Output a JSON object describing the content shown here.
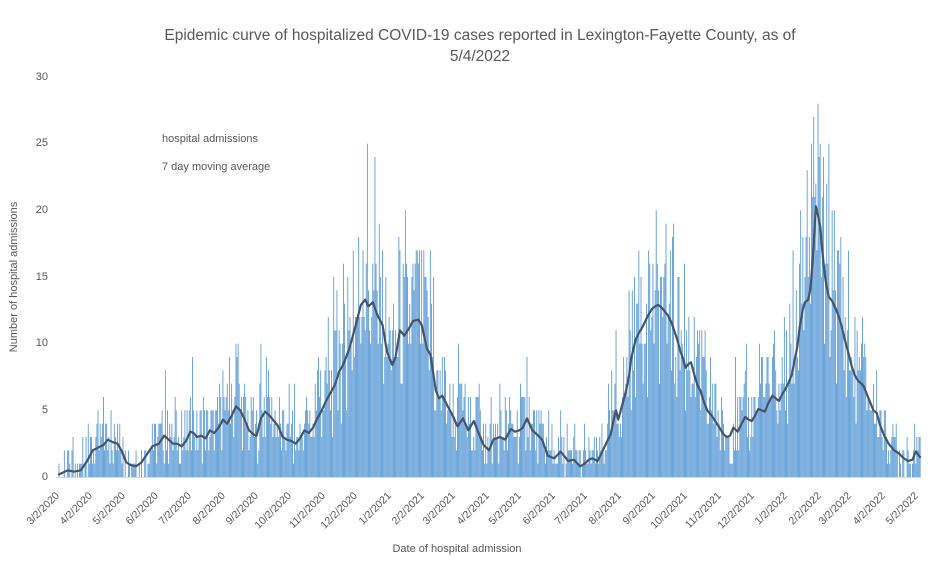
{
  "title": {
    "line1": "Epidemic curve of hospitalized COVID-19 cases reported in Lexington-Fayette County, as of",
    "line2": "5/4/2022"
  },
  "legend": {
    "items": [
      {
        "label": "hospital admissions",
        "swatch": "bar-swatch"
      },
      {
        "label": "7 day moving average",
        "swatch": "line-swatch"
      }
    ]
  },
  "chart_data": {
    "type": "combo",
    "title": "Epidemic curve of hospitalized COVID-19 cases reported in Lexington-Fayette County, as of 5/4/2022",
    "xlabel": "Date of hospital admission",
    "ylabel": "Number of hospital admissions",
    "ylim": [
      0,
      30
    ],
    "y_ticks": [
      0,
      5,
      10,
      15,
      20,
      25,
      30
    ],
    "grid": false,
    "legend_position": "top-left-inside",
    "start_date": "3/2/2020",
    "end_date": "5/4/2022",
    "n_days": 794,
    "x_ticks": [
      {
        "label": "3/2/2020",
        "day": 0
      },
      {
        "label": "4/2/2020",
        "day": 31
      },
      {
        "label": "5/2/2020",
        "day": 61
      },
      {
        "label": "6/2/2020",
        "day": 92
      },
      {
        "label": "7/2/2020",
        "day": 122
      },
      {
        "label": "8/2/2020",
        "day": 153
      },
      {
        "label": "9/2/2020",
        "day": 184
      },
      {
        "label": "10/2/2020",
        "day": 214
      },
      {
        "label": "11/2/2020",
        "day": 245
      },
      {
        "label": "12/2/2020",
        "day": 275
      },
      {
        "label": "1/2/2021",
        "day": 306
      },
      {
        "label": "2/2/2021",
        "day": 337
      },
      {
        "label": "3/2/2021",
        "day": 365
      },
      {
        "label": "4/2/2021",
        "day": 396
      },
      {
        "label": "5/2/2021",
        "day": 426
      },
      {
        "label": "6/2/2021",
        "day": 457
      },
      {
        "label": "7/2/2021",
        "day": 487
      },
      {
        "label": "8/2/2021",
        "day": 518
      },
      {
        "label": "9/2/2021",
        "day": 549
      },
      {
        "label": "10/2/2021",
        "day": 579
      },
      {
        "label": "11/2/2021",
        "day": 610
      },
      {
        "label": "12/2/2021",
        "day": 640
      },
      {
        "label": "1/2/2022",
        "day": 671
      },
      {
        "label": "2/2/2022",
        "day": 702
      },
      {
        "label": "3/2/2022",
        "day": 730
      },
      {
        "label": "4/2/2022",
        "day": 761
      },
      {
        "label": "5/2/2022",
        "day": 791
      }
    ],
    "series": [
      {
        "name": "hospital admissions",
        "type": "bar"
      },
      {
        "name": "7 day moving average",
        "type": "line"
      }
    ],
    "ma_keypoints": [
      [
        0,
        0.2
      ],
      [
        8,
        0.5
      ],
      [
        14,
        0.4
      ],
      [
        20,
        0.5
      ],
      [
        26,
        1.2
      ],
      [
        31,
        2.0
      ],
      [
        36,
        2.2
      ],
      [
        41,
        2.4
      ],
      [
        45,
        2.8
      ],
      [
        50,
        2.6
      ],
      [
        54,
        2.5
      ],
      [
        58,
        1.9
      ],
      [
        62,
        1.1
      ],
      [
        66,
        0.9
      ],
      [
        71,
        0.8
      ],
      [
        76,
        1.1
      ],
      [
        81,
        1.7
      ],
      [
        86,
        2.3
      ],
      [
        92,
        2.5
      ],
      [
        97,
        3.1
      ],
      [
        101,
        2.8
      ],
      [
        105,
        2.5
      ],
      [
        109,
        2.5
      ],
      [
        113,
        2.3
      ],
      [
        117,
        2.7
      ],
      [
        121,
        3.4
      ],
      [
        124,
        3.3
      ],
      [
        127,
        3.0
      ],
      [
        131,
        3.1
      ],
      [
        135,
        2.9
      ],
      [
        139,
        3.5
      ],
      [
        143,
        3.3
      ],
      [
        147,
        3.7
      ],
      [
        151,
        4.3
      ],
      [
        155,
        4.0
      ],
      [
        159,
        4.6
      ],
      [
        163,
        5.3
      ],
      [
        167,
        5.0
      ],
      [
        171,
        4.3
      ],
      [
        175,
        3.5
      ],
      [
        179,
        3.2
      ],
      [
        182,
        3.1
      ],
      [
        186,
        4.4
      ],
      [
        190,
        4.9
      ],
      [
        194,
        4.6
      ],
      [
        198,
        4.2
      ],
      [
        202,
        3.8
      ],
      [
        206,
        3.0
      ],
      [
        210,
        2.8
      ],
      [
        214,
        2.7
      ],
      [
        218,
        2.5
      ],
      [
        222,
        2.9
      ],
      [
        226,
        3.5
      ],
      [
        230,
        3.3
      ],
      [
        234,
        3.7
      ],
      [
        238,
        4.4
      ],
      [
        242,
        5.0
      ],
      [
        246,
        5.7
      ],
      [
        250,
        6.3
      ],
      [
        254,
        6.9
      ],
      [
        258,
        7.9
      ],
      [
        261,
        8.3
      ],
      [
        264,
        8.9
      ],
      [
        268,
        9.8
      ],
      [
        273,
        11.3
      ],
      [
        278,
        12.9
      ],
      [
        282,
        13.3
      ],
      [
        285,
        12.8
      ],
      [
        289,
        13.1
      ],
      [
        293,
        12.2
      ],
      [
        298,
        11.4
      ],
      [
        302,
        9.4
      ],
      [
        307,
        8.4
      ],
      [
        310,
        9.0
      ],
      [
        314,
        11.0
      ],
      [
        318,
        10.6
      ],
      [
        322,
        11.1
      ],
      [
        326,
        11.7
      ],
      [
        331,
        11.8
      ],
      [
        334,
        11.4
      ],
      [
        339,
        9.6
      ],
      [
        342,
        9.2
      ],
      [
        347,
        6.5
      ],
      [
        350,
        5.9
      ],
      [
        353,
        6.1
      ],
      [
        358,
        5.3
      ],
      [
        362,
        4.7
      ],
      [
        367,
        3.8
      ],
      [
        372,
        4.4
      ],
      [
        377,
        3.5
      ],
      [
        382,
        4.2
      ],
      [
        386,
        3.4
      ],
      [
        391,
        2.4
      ],
      [
        396,
        2.0
      ],
      [
        400,
        2.8
      ],
      [
        406,
        3.0
      ],
      [
        411,
        2.8
      ],
      [
        416,
        3.6
      ],
      [
        420,
        3.4
      ],
      [
        424,
        3.5
      ],
      [
        427,
        3.7
      ],
      [
        431,
        4.4
      ],
      [
        436,
        3.5
      ],
      [
        440,
        3.2
      ],
      [
        445,
        2.8
      ],
      [
        450,
        1.6
      ],
      [
        456,
        1.4
      ],
      [
        462,
        1.9
      ],
      [
        466,
        1.5
      ],
      [
        469,
        1.2
      ],
      [
        474,
        1.3
      ],
      [
        480,
        0.8
      ],
      [
        484,
        1.0
      ],
      [
        488,
        1.3
      ],
      [
        491,
        1.4
      ],
      [
        496,
        1.2
      ],
      [
        499,
        1.7
      ],
      [
        502,
        2.2
      ],
      [
        505,
        2.7
      ],
      [
        508,
        3.2
      ],
      [
        511,
        4.4
      ],
      [
        513,
        5.0
      ],
      [
        515,
        4.3
      ],
      [
        518,
        5.2
      ],
      [
        522,
        6.4
      ],
      [
        525,
        7.6
      ],
      [
        527,
        8.9
      ],
      [
        531,
        10.3
      ],
      [
        534,
        10.8
      ],
      [
        537,
        11.2
      ],
      [
        540,
        11.7
      ],
      [
        543,
        12.2
      ],
      [
        546,
        12.6
      ],
      [
        549,
        12.8
      ],
      [
        552,
        12.9
      ],
      [
        555,
        12.7
      ],
      [
        558,
        12.4
      ],
      [
        561,
        12.1
      ],
      [
        564,
        11.6
      ],
      [
        566,
        11.1
      ],
      [
        569,
        10.4
      ],
      [
        572,
        9.5
      ],
      [
        575,
        8.8
      ],
      [
        577,
        8.2
      ],
      [
        580,
        8.5
      ],
      [
        582,
        8.6
      ],
      [
        584,
        8.0
      ],
      [
        586,
        7.4
      ],
      [
        588,
        6.9
      ],
      [
        591,
        6.4
      ],
      [
        594,
        5.6
      ],
      [
        597,
        5.0
      ],
      [
        601,
        4.6
      ],
      [
        605,
        4.1
      ],
      [
        609,
        3.6
      ],
      [
        612,
        3.2
      ],
      [
        615,
        3.0
      ],
      [
        618,
        3.1
      ],
      [
        621,
        3.7
      ],
      [
        625,
        3.4
      ],
      [
        628,
        3.9
      ],
      [
        632,
        4.5
      ],
      [
        635,
        4.3
      ],
      [
        638,
        4.2
      ],
      [
        641,
        4.6
      ],
      [
        644,
        5.1
      ],
      [
        647,
        5.0
      ],
      [
        650,
        4.9
      ],
      [
        653,
        5.5
      ],
      [
        657,
        6.1
      ],
      [
        660,
        5.9
      ],
      [
        663,
        5.7
      ],
      [
        666,
        6.2
      ],
      [
        669,
        6.6
      ],
      [
        672,
        7.1
      ],
      [
        675,
        7.7
      ],
      [
        677,
        8.6
      ],
      [
        680,
        9.8
      ],
      [
        682,
        11.2
      ],
      [
        685,
        12.6
      ],
      [
        687,
        13.1
      ],
      [
        690,
        13.3
      ],
      [
        692,
        14.1
      ],
      [
        694,
        16.2
      ],
      [
        697,
        20.3
      ],
      [
        699,
        19.6
      ],
      [
        701,
        18.8
      ],
      [
        703,
        16.9
      ],
      [
        705,
        15.3
      ],
      [
        707,
        14.2
      ],
      [
        709,
        13.5
      ],
      [
        712,
        13.2
      ],
      [
        716,
        12.5
      ],
      [
        719,
        11.8
      ],
      [
        721,
        11.2
      ],
      [
        724,
        10.2
      ],
      [
        727,
        9.3
      ],
      [
        730,
        8.3
      ],
      [
        733,
        7.6
      ],
      [
        736,
        7.2
      ],
      [
        739,
        7.0
      ],
      [
        741,
        6.8
      ],
      [
        744,
        6.2
      ],
      [
        747,
        5.6
      ],
      [
        750,
        5.0
      ],
      [
        753,
        4.8
      ],
      [
        756,
        3.9
      ],
      [
        760,
        3.1
      ],
      [
        764,
        2.5
      ],
      [
        769,
        2.0
      ],
      [
        773,
        1.8
      ],
      [
        778,
        1.4
      ],
      [
        782,
        1.2
      ],
      [
        786,
        1.3
      ],
      [
        789,
        1.9
      ],
      [
        791,
        1.7
      ],
      [
        793,
        1.5
      ]
    ],
    "bar_spikes": {
      "8": 2,
      "22": 3,
      "27": 4,
      "36": 5,
      "41": 6,
      "48": 5,
      "98": 8,
      "123": 9,
      "151": 8,
      "157": 9,
      "163": 10,
      "186": 10,
      "191": 9,
      "238": 8,
      "248": 12,
      "253": 15,
      "256": 14,
      "262": 16,
      "266": 15,
      "276": 18,
      "280": 17,
      "283": 16,
      "289": 16,
      "296": 15,
      "318": 15,
      "326": 16,
      "330": 17,
      "337": 15,
      "342": 17,
      "345": 15,
      "368": 10,
      "411": 6,
      "425": 7,
      "431": 9,
      "509": 8,
      "525": 14,
      "532": 13,
      "536": 15,
      "543": 17,
      "547": 16,
      "551": 16,
      "555": 15,
      "558": 16,
      "566": 19,
      "571": 15,
      "585": 12,
      "592": 11,
      "600": 9,
      "623": 9,
      "633": 10,
      "645": 10,
      "652": 9,
      "659": 11,
      "668": 12,
      "673": 13,
      "676": 17,
      "679": 14,
      "683": 20,
      "687": 15,
      "689": 23,
      "691": 18,
      "693": 25,
      "696": 21,
      "698": 17,
      "702": 15,
      "706": 16,
      "708": 16,
      "713": 14,
      "737": 9,
      "741": 9,
      "771": 4,
      "781": 3,
      "790": 3
    },
    "bar_model": {
      "note": "daily bars approximated: ma + deterministic noise, spikes override",
      "hash_a": 12.9898,
      "hash_b": 43758.5453,
      "hash_c": 78.233,
      "hash_d": 12345.678,
      "noise_center": 0.45,
      "noise_base": 1.8,
      "noise_scale": 0.9,
      "spike_prob": 0.9,
      "spike_base": 1.5,
      "spike_scale": 0.35,
      "zero_ma_threshold": 0.35,
      "zero_roll": 0.55
    },
    "colors": {
      "bar": "#5B9BD5",
      "line": "#44546A",
      "text": "#595959",
      "axis": "#D9D9D9",
      "background": "#FFFFFF"
    }
  }
}
